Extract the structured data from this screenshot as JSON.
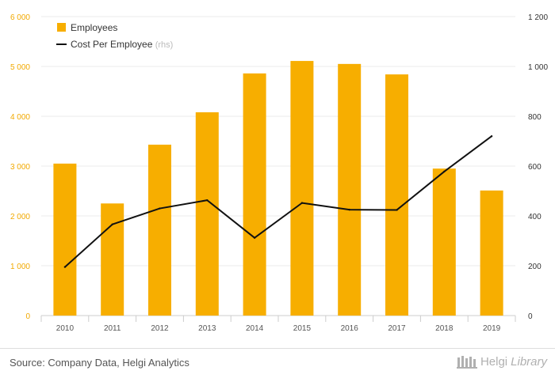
{
  "chart_data": {
    "type": "bar+line",
    "categories": [
      "2010",
      "2011",
      "2012",
      "2013",
      "2014",
      "2015",
      "2016",
      "2017",
      "2018",
      "2019"
    ],
    "series": [
      {
        "name": "Employees",
        "type": "bar",
        "axis": "left",
        "color": "#f7ae00",
        "values": [
          3050,
          2250,
          3430,
          4080,
          4860,
          5110,
          5050,
          4840,
          2950,
          2510
        ]
      },
      {
        "name": "Cost Per Employee",
        "legend_note": "(rhs)",
        "type": "line",
        "axis": "right",
        "color": "#111111",
        "values": [
          195,
          366,
          430,
          463,
          312,
          452,
          425,
          424,
          578,
          720
        ]
      }
    ],
    "y_left": {
      "min": 0,
      "max": 6000,
      "ticks": [
        0,
        1000,
        2000,
        3000,
        4000,
        5000,
        6000
      ],
      "tick_labels": [
        "0",
        "1 000",
        "2 000",
        "3 000",
        "4 000",
        "5 000",
        "6 000"
      ],
      "color": "#f2a900"
    },
    "y_right": {
      "min": 0,
      "max": 1200,
      "ticks": [
        0,
        200,
        400,
        600,
        800,
        1000,
        1200
      ],
      "tick_labels": [
        "0",
        "200",
        "400",
        "600",
        "800",
        "1 000",
        "1 200"
      ]
    },
    "grid": true,
    "legend": "top-left"
  },
  "footer": {
    "source": "Source: Company Data, Helgi Analytics",
    "brand_name": "Helgi",
    "brand_suffix": "Library"
  }
}
